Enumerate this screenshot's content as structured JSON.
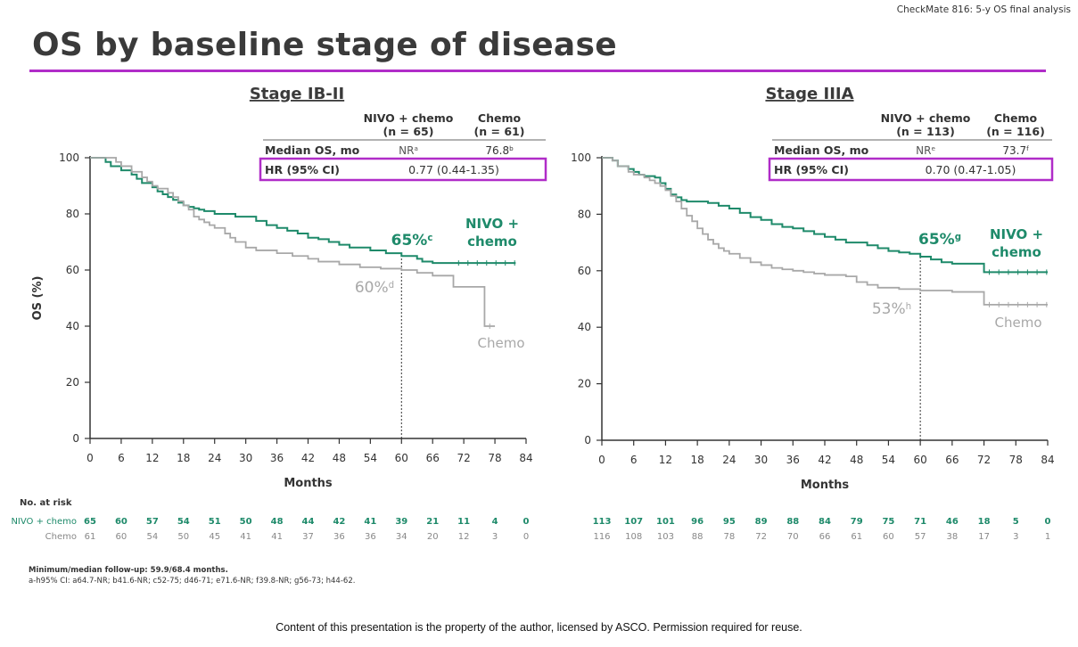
{
  "header_tag": "CheckMate 816: 5-y OS final analysis",
  "slide_title": "OS by baseline stage of disease",
  "colors": {
    "nivo": "#1e8a6a",
    "chemo": "#a8a8a8",
    "accent": "#b02cc8",
    "axis": "#333333"
  },
  "risk_table_label": "No. at risk",
  "footnotes": {
    "followup": "Minimum/median follow-up: 59.9/68.4 months.",
    "ci": "a-h95% CI: a64.7-NR; b41.6-NR; c52-75; d46-71; e71.6-NR; f39.8-NR; g56-73; h44-62."
  },
  "copyright": "Content of this presentation is the property of the author, licensed by ASCO. Permission required for reuse.",
  "chart_data": [
    {
      "type": "line",
      "title": "Stage IB-II",
      "xlabel": "Months",
      "ylabel": "OS (%)",
      "xlim": [
        0,
        84
      ],
      "ylim": [
        0,
        100
      ],
      "xticks": [
        0,
        6,
        12,
        18,
        24,
        30,
        36,
        42,
        48,
        54,
        60,
        66,
        72,
        78,
        84
      ],
      "yticks": [
        0,
        20,
        40,
        60,
        80,
        100
      ],
      "table": {
        "headers": [
          "",
          "NIVO + chemo\n(n = 65)",
          "Chemo\n(n = 61)"
        ],
        "median_label": "Median OS, mo",
        "median_nivo": "NRa",
        "median_chemo": "76.8b",
        "hr_label": "HR (95% CI)",
        "hr_value": "0.77 (0.44-1.35)"
      },
      "landmark": {
        "x": 60,
        "nivo_label": "65%c",
        "chemo_label": "60%d",
        "nivo_value": 65,
        "chemo_value": 60
      },
      "series": [
        {
          "name": "NIVO + chemo",
          "label": "NIVO +\nchemo",
          "x": [
            0,
            3,
            4,
            6,
            8,
            9,
            10,
            12,
            13,
            14,
            15,
            16,
            17,
            18,
            19,
            20,
            21,
            22,
            24,
            28,
            32,
            34,
            36,
            38,
            40,
            42,
            44,
            46,
            48,
            50,
            54,
            57,
            60,
            63,
            64,
            66,
            70,
            82
          ],
          "y": [
            100,
            98.5,
            97,
            95.5,
            94,
            92.5,
            91,
            89.5,
            88,
            87,
            86,
            85,
            84,
            83,
            82.5,
            82,
            81.5,
            81,
            80,
            79,
            77.5,
            76,
            75,
            74,
            73,
            71.5,
            71,
            70,
            69,
            68,
            67,
            66,
            65,
            64,
            63,
            62.5,
            62.5,
            62.5
          ]
        },
        {
          "name": "Chemo",
          "label": "Chemo",
          "x": [
            0,
            5,
            6,
            8,
            10,
            11,
            12,
            13,
            15,
            16,
            17,
            18,
            19,
            20,
            21,
            22,
            23,
            24,
            26,
            27,
            28,
            30,
            32,
            36,
            39,
            42,
            44,
            48,
            52,
            56,
            60,
            63,
            66,
            70,
            75,
            76,
            78
          ],
          "y": [
            100,
            98.5,
            97,
            95,
            93,
            91.5,
            90,
            89,
            87.5,
            86,
            84.5,
            83,
            81.5,
            79,
            78,
            77,
            76,
            75,
            73,
            71.5,
            70,
            68,
            67,
            66,
            65,
            64,
            63,
            62,
            61,
            60.5,
            60,
            59,
            58,
            54,
            54,
            40,
            40
          ]
        }
      ],
      "risk_table": {
        "times": [
          0,
          6,
          12,
          18,
          24,
          30,
          36,
          42,
          48,
          54,
          60,
          66,
          72,
          78,
          84
        ],
        "rows": [
          {
            "name": "NIVO + chemo",
            "values": [
              65,
              60,
              57,
              54,
              51,
              50,
              48,
              44,
              42,
              41,
              39,
              21,
              11,
              4,
              0
            ]
          },
          {
            "name": "Chemo",
            "values": [
              61,
              60,
              54,
              50,
              45,
              41,
              41,
              37,
              36,
              36,
              34,
              20,
              12,
              3,
              0
            ]
          }
        ]
      }
    },
    {
      "type": "line",
      "title": "Stage IIIA",
      "xlabel": "Months",
      "ylabel": "OS (%)",
      "xlim": [
        0,
        84
      ],
      "ylim": [
        0,
        100
      ],
      "xticks": [
        0,
        6,
        12,
        18,
        24,
        30,
        36,
        42,
        48,
        54,
        60,
        66,
        72,
        78,
        84
      ],
      "yticks": [
        0,
        20,
        40,
        60,
        80,
        100
      ],
      "table": {
        "headers": [
          "",
          "NIVO + chemo\n(n = 113)",
          "Chemo\n(n = 116)"
        ],
        "median_label": "Median OS, mo",
        "median_nivo": "NRe",
        "median_chemo": "73.7f",
        "hr_label": "HR (95% CI)",
        "hr_value": "0.70 (0.47-1.05)"
      },
      "landmark": {
        "x": 60,
        "nivo_label": "65%g",
        "chemo_label": "53%h",
        "nivo_value": 65,
        "chemo_value": 53
      },
      "series": [
        {
          "name": "NIVO + chemo",
          "label": "NIVO +\nchemo",
          "x": [
            0,
            2,
            3,
            5,
            6,
            7,
            8,
            10,
            11,
            12,
            13,
            14,
            15,
            16,
            18,
            20,
            22,
            24,
            26,
            28,
            30,
            32,
            34,
            36,
            38,
            40,
            42,
            44,
            46,
            48,
            50,
            52,
            54,
            56,
            58,
            60,
            62,
            64,
            66,
            72,
            84
          ],
          "y": [
            100,
            99,
            97,
            96,
            95,
            94,
            93.5,
            93,
            91,
            89,
            87,
            86,
            85,
            84.5,
            84.5,
            84,
            83,
            82,
            80.5,
            79,
            78,
            76.5,
            75.5,
            75,
            74,
            73,
            72,
            71,
            70,
            70,
            69,
            68,
            67,
            66.5,
            66,
            65,
            64,
            63,
            62.5,
            59.5,
            59.5
          ]
        },
        {
          "name": "Chemo",
          "label": "Chemo",
          "x": [
            0,
            2,
            3,
            5,
            6,
            8,
            9,
            10,
            11,
            12,
            13,
            14,
            15,
            16,
            17,
            18,
            19,
            20,
            21,
            22,
            23,
            24,
            26,
            28,
            30,
            32,
            34,
            36,
            38,
            40,
            42,
            46,
            48,
            50,
            52,
            56,
            60,
            66,
            72,
            84
          ],
          "y": [
            100,
            99,
            97,
            95,
            94,
            93,
            92,
            91,
            90,
            88.5,
            86.5,
            84.5,
            82,
            79.5,
            77.5,
            75,
            73,
            71,
            69.5,
            68,
            67,
            66,
            64.5,
            63,
            62,
            61,
            60.5,
            60,
            59.5,
            59,
            58.5,
            58,
            56,
            55,
            54,
            53.5,
            53,
            52.5,
            48,
            48
          ]
        }
      ],
      "risk_table": {
        "times": [
          0,
          6,
          12,
          18,
          24,
          30,
          36,
          42,
          48,
          54,
          60,
          66,
          72,
          78,
          84
        ],
        "rows": [
          {
            "name": "NIVO + chemo",
            "values": [
              113,
              107,
              101,
              96,
              95,
              89,
              88,
              84,
              79,
              75,
              71,
              46,
              18,
              5,
              0
            ]
          },
          {
            "name": "Chemo",
            "values": [
              116,
              108,
              103,
              88,
              78,
              72,
              70,
              66,
              61,
              60,
              57,
              38,
              17,
              3,
              1
            ]
          }
        ]
      }
    }
  ]
}
